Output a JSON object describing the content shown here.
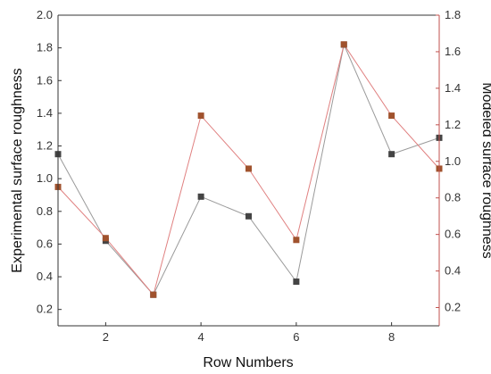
{
  "chart_data": {
    "type": "line",
    "x": [
      1,
      2,
      3,
      4,
      5,
      6,
      7,
      8,
      9
    ],
    "xlim": [
      1,
      9
    ],
    "x_ticks": [
      "2",
      "4",
      "6",
      "8"
    ],
    "xlabel": "Row Numbers",
    "ylabel_left": "Experimental surface roughness",
    "ylabel_right": "Modeled surface roughness",
    "ylim_left": [
      0.1,
      2.0
    ],
    "ylim_right": [
      0.1,
      1.8
    ],
    "y_ticks_left": [
      "0.2",
      "0.4",
      "0.6",
      "0.8",
      "1.0",
      "1.2",
      "1.4",
      "1.6",
      "1.8",
      "2.0"
    ],
    "y_ticks_right": [
      "0.2",
      "0.4",
      "0.6",
      "0.8",
      "1.0",
      "1.2",
      "1.4",
      "1.6",
      "1.8"
    ],
    "series": [
      {
        "axis": "left",
        "values": [
          1.15,
          0.62,
          0.29,
          0.89,
          0.77,
          0.37,
          1.82,
          1.15,
          1.25
        ],
        "line_color": "#9a9a9a",
        "marker_color": "#444444"
      },
      {
        "axis": "right",
        "values": [
          0.86,
          0.58,
          0.27,
          1.25,
          0.96,
          0.57,
          1.64,
          1.25,
          0.96
        ],
        "line_color": "#e08080",
        "marker_color": "#a0522d"
      }
    ],
    "right_axis_color": "#c0504d",
    "grid": false,
    "legend": false
  }
}
